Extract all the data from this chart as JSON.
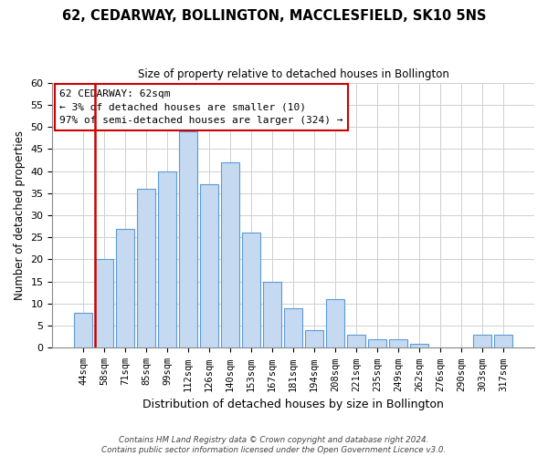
{
  "title": "62, CEDARWAY, BOLLINGTON, MACCLESFIELD, SK10 5NS",
  "subtitle": "Size of property relative to detached houses in Bollington",
  "xlabel": "Distribution of detached houses by size in Bollington",
  "ylabel": "Number of detached properties",
  "bar_labels": [
    "44sqm",
    "58sqm",
    "71sqm",
    "85sqm",
    "99sqm",
    "112sqm",
    "126sqm",
    "140sqm",
    "153sqm",
    "167sqm",
    "181sqm",
    "194sqm",
    "208sqm",
    "221sqm",
    "235sqm",
    "249sqm",
    "262sqm",
    "276sqm",
    "290sqm",
    "303sqm",
    "317sqm"
  ],
  "bar_values": [
    8,
    20,
    27,
    36,
    40,
    49,
    37,
    42,
    26,
    15,
    9,
    4,
    11,
    3,
    2,
    2,
    1,
    0,
    0,
    3,
    3
  ],
  "bar_color": "#c5d9f1",
  "bar_edge_color": "#5b9bd5",
  "ylim": [
    0,
    60
  ],
  "yticks": [
    0,
    5,
    10,
    15,
    20,
    25,
    30,
    35,
    40,
    45,
    50,
    55,
    60
  ],
  "red_line_index": 1,
  "annotation_box_text": "62 CEDARWAY: 62sqm\n← 3% of detached houses are smaller (10)\n97% of semi-detached houses are larger (324) →",
  "footer_line1": "Contains HM Land Registry data © Crown copyright and database right 2024.",
  "footer_line2": "Contains public sector information licensed under the Open Government Licence v3.0.",
  "grid_color": "#d0d0d0",
  "background_color": "#ffffff",
  "red_line_color": "#cc0000",
  "annotation_edge_color": "#cc0000"
}
